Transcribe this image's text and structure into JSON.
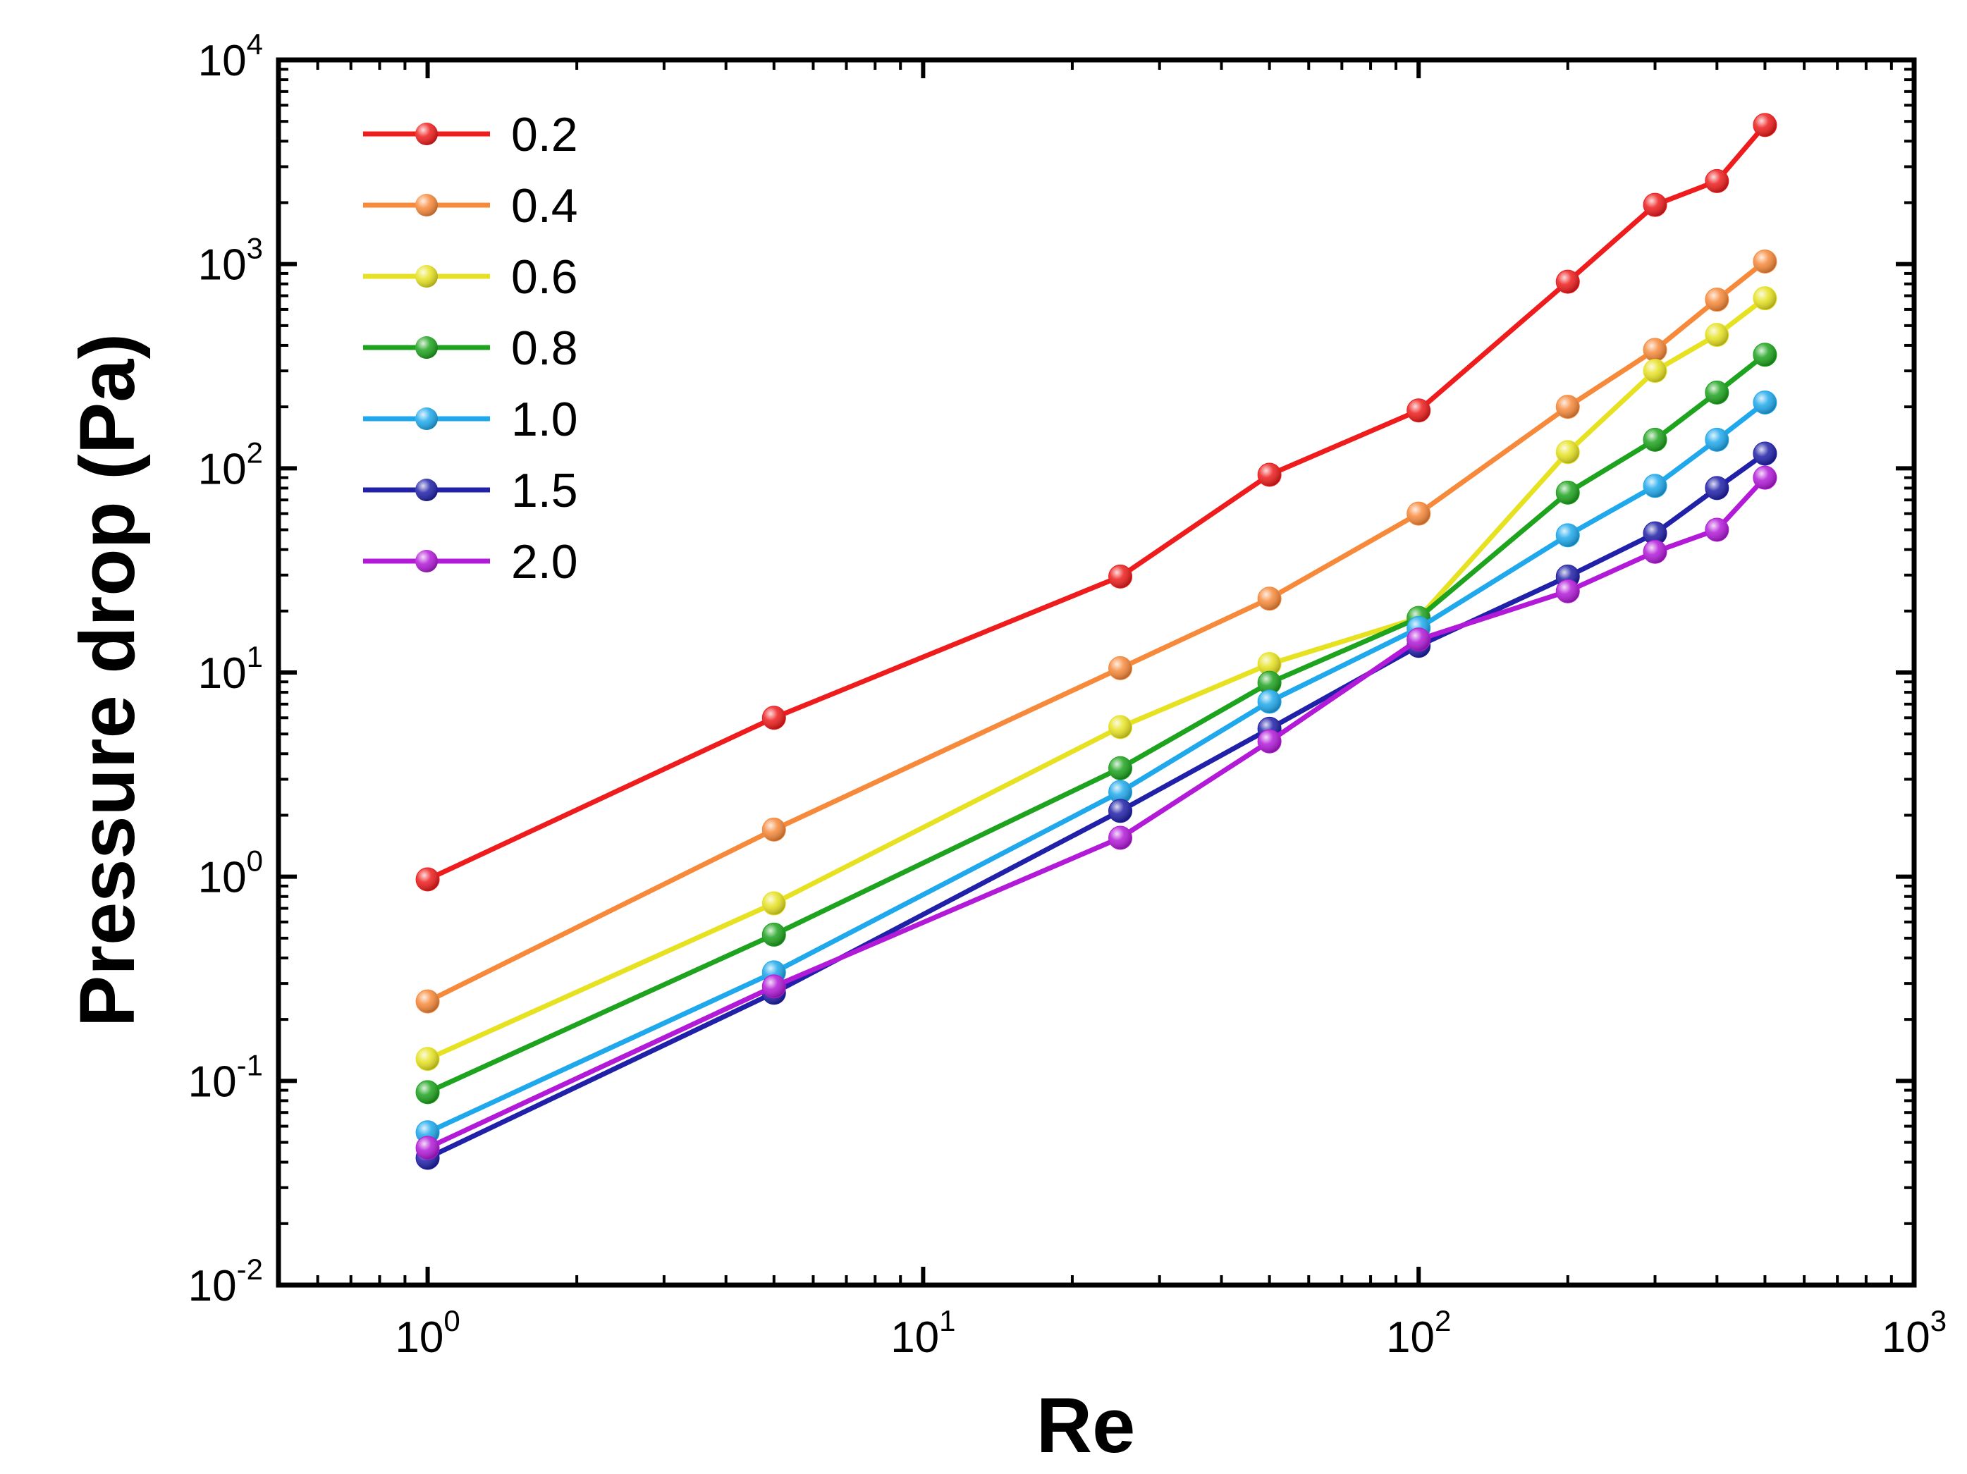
{
  "chart_data": {
    "type": "line",
    "title": "",
    "xlabel": "Re",
    "ylabel": "Pressure drop (Pa)",
    "xscale": "log",
    "yscale": "log",
    "xlim": [
      0.5,
      1000
    ],
    "ylim": [
      0.01,
      10000
    ],
    "xticks": [
      {
        "value": 1,
        "base": "10",
        "exp": "0"
      },
      {
        "value": 10,
        "base": "10",
        "exp": "1"
      },
      {
        "value": 100,
        "base": "10",
        "exp": "2"
      },
      {
        "value": 1000,
        "base": "10",
        "exp": "3"
      }
    ],
    "yticks": [
      {
        "value": 0.01,
        "base": "10",
        "exp": "-2"
      },
      {
        "value": 0.1,
        "base": "10",
        "exp": "-1"
      },
      {
        "value": 1,
        "base": "10",
        "exp": "0"
      },
      {
        "value": 10,
        "base": "10",
        "exp": "1"
      },
      {
        "value": 100,
        "base": "10",
        "exp": "2"
      },
      {
        "value": 1000,
        "base": "10",
        "exp": "3"
      },
      {
        "value": 10000,
        "base": "10",
        "exp": "4"
      }
    ],
    "grid": false,
    "legend_position": "top-left",
    "x": [
      1,
      5,
      25,
      50,
      100,
      200,
      300,
      400,
      500
    ],
    "series": [
      {
        "name": "0.2",
        "color": "#ee1c1c",
        "values": [
          0.97,
          6.0,
          29.5,
          93,
          192,
          820,
          1950,
          2550,
          4800
        ]
      },
      {
        "name": "0.4",
        "color": "#f7893a",
        "values": [
          0.245,
          1.7,
          10.5,
          23,
          60,
          200,
          380,
          670,
          1030
        ]
      },
      {
        "name": "0.6",
        "color": "#e6e222",
        "values": [
          0.128,
          0.74,
          5.4,
          11,
          18.5,
          120,
          300,
          450,
          680
        ]
      },
      {
        "name": "0.8",
        "color": "#1ea31e",
        "values": [
          0.088,
          0.52,
          3.4,
          8.9,
          18.5,
          76,
          138,
          235,
          360
        ]
      },
      {
        "name": "1.0",
        "color": "#1fa9ec",
        "values": [
          0.056,
          0.34,
          2.6,
          7.2,
          16.5,
          47,
          82,
          138,
          210
        ]
      },
      {
        "name": "1.5",
        "color": "#2020a8",
        "values": [
          0.042,
          0.27,
          2.1,
          5.3,
          13.5,
          29.5,
          48,
          80,
          118
        ]
      },
      {
        "name": "2.0",
        "color": "#b21ad8",
        "values": [
          0.047,
          0.29,
          1.55,
          4.6,
          14.5,
          25,
          39,
          50,
          90
        ]
      }
    ]
  }
}
